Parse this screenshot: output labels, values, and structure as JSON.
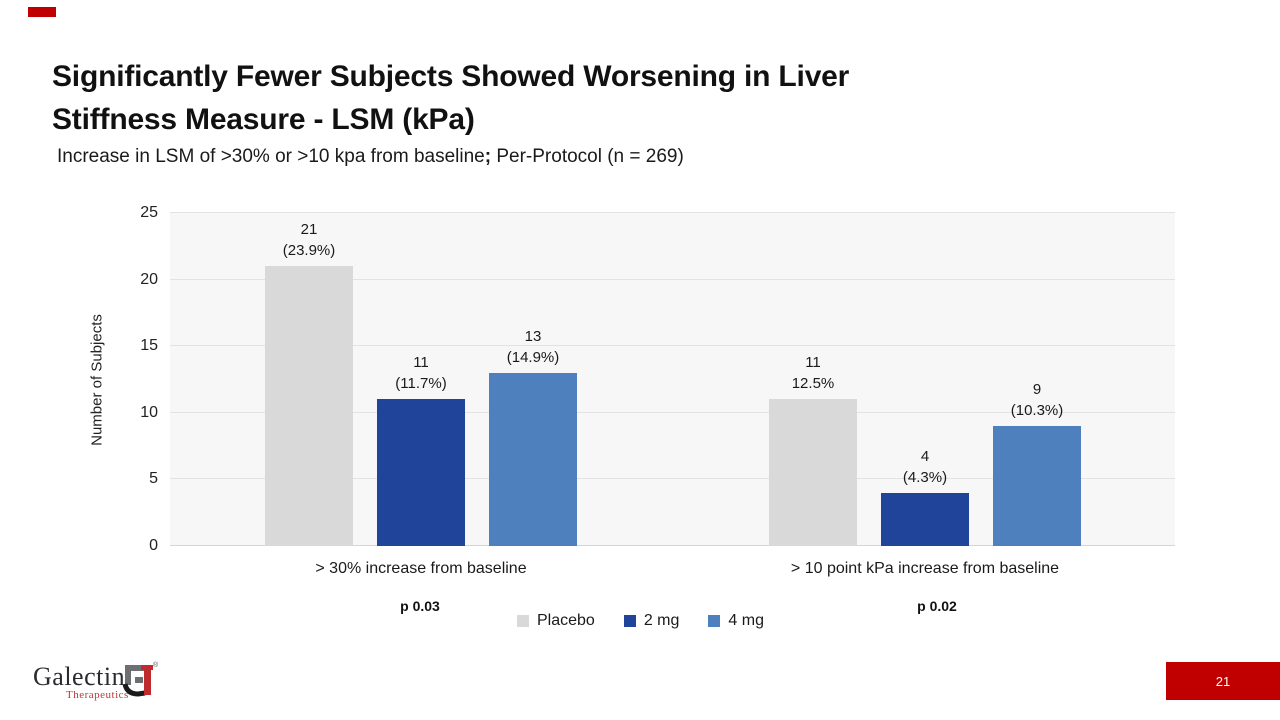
{
  "slide": {
    "title_line1": "Significantly Fewer Subjects Showed Worsening in Liver",
    "title_line2": "Stiffness Measure - LSM (kPa)",
    "subtitle_before": "Increase in LSM of >30% or >10 kpa from baseline",
    "subtitle_semicolon": ";",
    "subtitle_after": " Per-Protocol  (n = 269)",
    "page_number": "21"
  },
  "chart_data": {
    "type": "bar",
    "title": "",
    "xlabel": "",
    "ylabel": "Number of Subjects",
    "ylim": [
      0,
      25
    ],
    "yticks": [
      0,
      5,
      10,
      15,
      20,
      25
    ],
    "grid": true,
    "legend_position": "bottom",
    "plot_bg": "#F7F7F7",
    "categories": [
      "> 30% increase from baseline",
      "> 10 point kPa increase from baseline"
    ],
    "p_values": [
      "p 0.03",
      "p 0.02"
    ],
    "series": [
      {
        "name": "Placebo",
        "color": "#D9D9D9",
        "values": [
          21,
          11
        ],
        "labels": [
          [
            "21",
            "(23.9%)"
          ],
          [
            "11",
            "12.5%"
          ]
        ]
      },
      {
        "name": "2 mg",
        "color": "#1F449A",
        "values": [
          11,
          4
        ],
        "labels": [
          [
            "11",
            "(11.7%)"
          ],
          [
            "4",
            "(4.3%)"
          ]
        ]
      },
      {
        "name": "4 mg",
        "color": "#4E80BD",
        "values": [
          13,
          9
        ],
        "labels": [
          [
            "13",
            "(14.9%)"
          ],
          [
            "9",
            "(10.3%)"
          ]
        ]
      }
    ]
  },
  "footer": {
    "logo_name": "Galectin",
    "logo_sub": "Therapeutics",
    "logo_reg": "®"
  },
  "colors": {
    "accent_red": "#C00000",
    "logo_gray": "#6D6F72",
    "logo_red": "#C02B30"
  }
}
